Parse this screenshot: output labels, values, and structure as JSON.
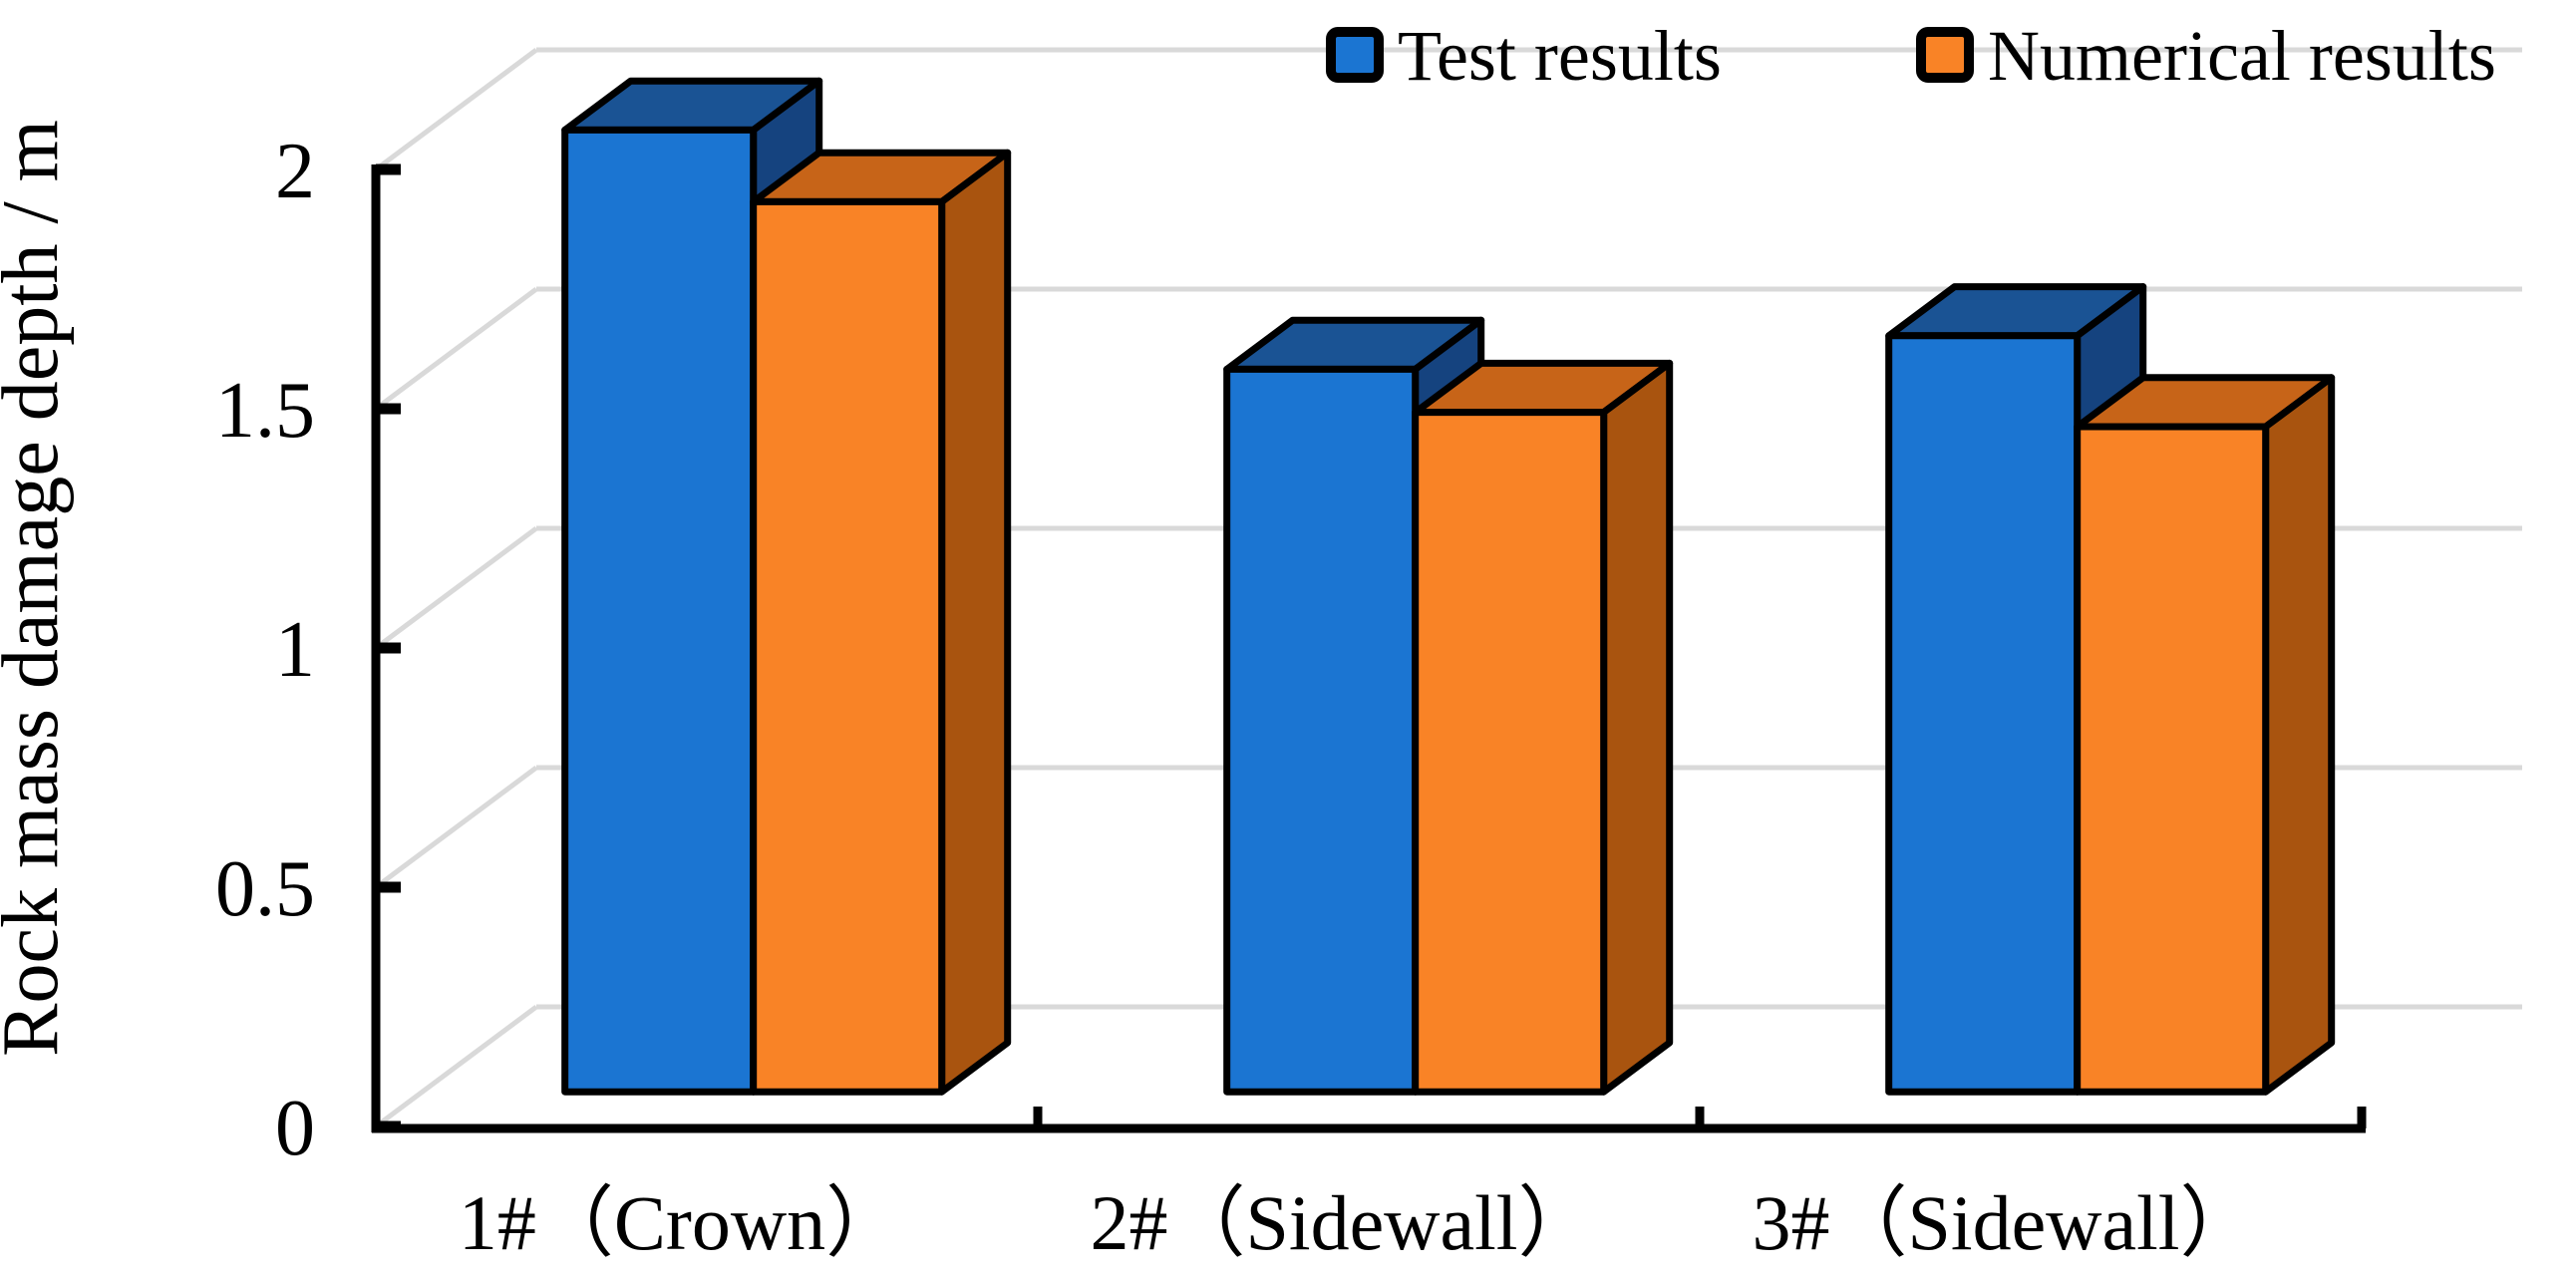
{
  "chart_data": {
    "type": "bar",
    "style": "3d-clustered-column",
    "title": "",
    "xlabel": "",
    "ylabel": "Rock mass damage depth / m",
    "categories": [
      "1#（Crown）",
      "2#（Sidewall）",
      "3#（Sidewall）"
    ],
    "series": [
      {
        "name": "Test results",
        "values": [
          2.01,
          1.51,
          1.58
        ],
        "color_front": "#1B75D2",
        "color_top": "#1A5394",
        "color_side": "#15437F"
      },
      {
        "name": "Numerical results",
        "values": [
          1.86,
          1.42,
          1.39
        ],
        "color_front": "#F98326",
        "color_top": "#C76418",
        "color_side": "#A9540F"
      }
    ],
    "yticks": [
      0,
      0.5,
      1,
      1.5,
      2
    ],
    "ytick_labels": [
      "0",
      "0.5",
      "1",
      "1.5",
      "2"
    ],
    "ylim": [
      0,
      2.15
    ],
    "grid": true,
    "legend_position": "top"
  },
  "colors": {
    "background": "#FFFFFF",
    "gridline": "#D9D9D9",
    "axis": "#000000",
    "bar_outline": "#000000",
    "text": "#000000"
  }
}
